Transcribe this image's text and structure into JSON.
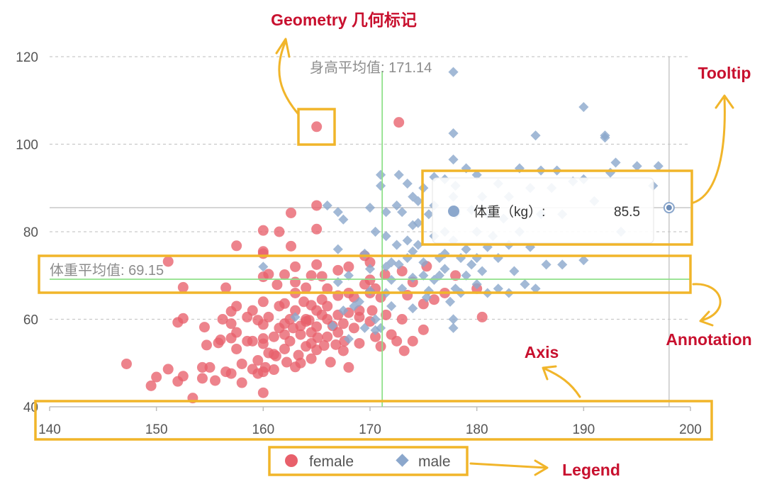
{
  "chart_data": {
    "type": "scatter",
    "title": "",
    "xlabel": "",
    "ylabel": "",
    "xlim": [
      140,
      200
    ],
    "ylim": [
      40,
      120
    ],
    "x_ticks": [
      140,
      150,
      160,
      170,
      180,
      190,
      200
    ],
    "y_ticks": [
      40,
      60,
      80,
      100,
      120
    ],
    "grid": "horizontal dashed",
    "legend_position": "bottom-center",
    "series": [
      {
        "name": "female",
        "shape": "circle",
        "color": "#e8606b",
        "points": [
          [
            147.2,
            49.8
          ],
          [
            149.5,
            44.8
          ],
          [
            150.0,
            46.8
          ],
          [
            151.1,
            73.2
          ],
          [
            151.1,
            48.6
          ],
          [
            152.0,
            45.8
          ],
          [
            152.0,
            59.3
          ],
          [
            152.5,
            67.3
          ],
          [
            152.5,
            47.0
          ],
          [
            152.5,
            60.2
          ],
          [
            153.4,
            42.0
          ],
          [
            154.3,
            46.5
          ],
          [
            154.3,
            49.0
          ],
          [
            154.5,
            58.2
          ],
          [
            154.7,
            54.1
          ],
          [
            155.0,
            49.0
          ],
          [
            155.5,
            46.0
          ],
          [
            155.8,
            54.6
          ],
          [
            156.0,
            55.3
          ],
          [
            156.2,
            60.0
          ],
          [
            156.5,
            67.2
          ],
          [
            156.5,
            48.0
          ],
          [
            157.0,
            47.6
          ],
          [
            157.0,
            55.7
          ],
          [
            157.0,
            61.8
          ],
          [
            157.5,
            57.0
          ],
          [
            157.5,
            63.0
          ],
          [
            157.5,
            76.8
          ],
          [
            157.5,
            53.2
          ],
          [
            158.0,
            49.8
          ],
          [
            158.0,
            45.5
          ],
          [
            158.5,
            60.5
          ],
          [
            159.0,
            48.6
          ],
          [
            159.0,
            55.0
          ],
          [
            159.5,
            50.6
          ],
          [
            159.5,
            59.8
          ],
          [
            159.5,
            47.6
          ],
          [
            160.0,
            55.6
          ],
          [
            160.0,
            43.2
          ],
          [
            160.0,
            48.0
          ],
          [
            160.0,
            54.4
          ],
          [
            160.0,
            58.8
          ],
          [
            160.0,
            80.3
          ],
          [
            160.0,
            75.5
          ],
          [
            160.0,
            75.0
          ],
          [
            160.0,
            69.7
          ],
          [
            160.0,
            64.0
          ],
          [
            160.2,
            49.0
          ],
          [
            160.5,
            52.3
          ],
          [
            160.5,
            70.3
          ],
          [
            161.0,
            48.5
          ],
          [
            161.0,
            56.0
          ],
          [
            161.2,
            51.6
          ],
          [
            161.3,
            67.9
          ],
          [
            161.5,
            80.0
          ],
          [
            161.5,
            58.0
          ],
          [
            162.0,
            53.2
          ],
          [
            162.0,
            63.6
          ],
          [
            162.0,
            59.0
          ],
          [
            162.0,
            70.2
          ],
          [
            162.2,
            50.2
          ],
          [
            162.5,
            55.0
          ],
          [
            162.5,
            60.0
          ],
          [
            162.6,
            76.7
          ],
          [
            162.6,
            84.3
          ],
          [
            162.8,
            58.0
          ],
          [
            163.0,
            49.1
          ],
          [
            163.0,
            66.0
          ],
          [
            163.0,
            72.0
          ],
          [
            163.0,
            62.0
          ],
          [
            163.3,
            51.8
          ],
          [
            163.5,
            50.0
          ],
          [
            163.5,
            56.5
          ],
          [
            163.8,
            64.0
          ],
          [
            164.0,
            53.8
          ],
          [
            164.0,
            60.0
          ],
          [
            164.0,
            67.2
          ],
          [
            164.0,
            59.5
          ],
          [
            164.3,
            59.8
          ],
          [
            164.5,
            51.0
          ],
          [
            164.5,
            57.0
          ],
          [
            164.5,
            70.0
          ],
          [
            164.5,
            63.2
          ],
          [
            165.0,
            104.0
          ],
          [
            165.0,
            86.0
          ],
          [
            165.0,
            80.6
          ],
          [
            165.0,
            72.5
          ],
          [
            165.0,
            62.0
          ],
          [
            165.0,
            58.3
          ],
          [
            165.0,
            53.0
          ],
          [
            165.1,
            55.8
          ],
          [
            165.5,
            69.8
          ],
          [
            165.5,
            64.5
          ],
          [
            165.7,
            54.0
          ],
          [
            166.0,
            67.0
          ],
          [
            166.0,
            60.0
          ],
          [
            166.0,
            56.0
          ],
          [
            166.3,
            50.2
          ],
          [
            166.5,
            58.5
          ],
          [
            166.8,
            54.2
          ],
          [
            167.0,
            61.0
          ],
          [
            167.0,
            65.4
          ],
          [
            167.0,
            71.2
          ],
          [
            167.0,
            57.0
          ],
          [
            167.5,
            52.8
          ],
          [
            167.6,
            55.0
          ],
          [
            168.0,
            49.0
          ],
          [
            168.0,
            61.5
          ],
          [
            168.0,
            66.0
          ],
          [
            168.0,
            72.0
          ],
          [
            168.5,
            58.0
          ],
          [
            169.0,
            54.5
          ],
          [
            169.0,
            62.0
          ],
          [
            169.5,
            68.0
          ],
          [
            169.5,
            74.5
          ],
          [
            170.0,
            69.0
          ],
          [
            170.0,
            66.0
          ],
          [
            170.0,
            73.0
          ],
          [
            170.0,
            59.5
          ],
          [
            170.2,
            62.0
          ],
          [
            170.5,
            56.0
          ],
          [
            170.5,
            67.0
          ],
          [
            171.0,
            53.8
          ],
          [
            171.0,
            65.0
          ],
          [
            171.4,
            70.2
          ],
          [
            172.0,
            56.5
          ],
          [
            172.5,
            55.0
          ],
          [
            172.7,
            105.0
          ],
          [
            173.0,
            60.0
          ],
          [
            173.0,
            71.0
          ],
          [
            173.2,
            52.8
          ],
          [
            173.5,
            65.5
          ],
          [
            174.0,
            68.5
          ],
          [
            174.0,
            55.0
          ],
          [
            175.0,
            57.6
          ],
          [
            175.0,
            63.5
          ],
          [
            175.3,
            72.1
          ],
          [
            176.0,
            64.5
          ],
          [
            177.0,
            66.0
          ],
          [
            178.0,
            70.0
          ],
          [
            180.0,
            67.0
          ],
          [
            180.5,
            60.5
          ],
          [
            157.0,
            59.0
          ],
          [
            158.5,
            55.0
          ],
          [
            161.0,
            52.0
          ],
          [
            162.0,
            56.5
          ],
          [
            163.5,
            58.5
          ],
          [
            164.5,
            54.5
          ],
          [
            166.0,
            63.0
          ],
          [
            167.5,
            59.0
          ],
          [
            169.0,
            60.5
          ],
          [
            161.5,
            63.0
          ],
          [
            159.0,
            62.0
          ],
          [
            165.5,
            61.0
          ],
          [
            168.5,
            65.0
          ],
          [
            171.5,
            61.0
          ],
          [
            163.0,
            68.5
          ],
          [
            160.5,
            60.5
          ]
        ]
      },
      {
        "name": "male",
        "shape": "diamond",
        "color": "#8ba7cc",
        "points": [
          [
            160.0,
            72.0
          ],
          [
            163.0,
            60.5
          ],
          [
            166.0,
            86.0
          ],
          [
            167.0,
            84.5
          ],
          [
            167.0,
            76.0
          ],
          [
            167.5,
            82.8
          ],
          [
            167.0,
            68.5
          ],
          [
            168.0,
            70.0
          ],
          [
            168.0,
            55.5
          ],
          [
            169.0,
            64.0
          ],
          [
            169.5,
            75.0
          ],
          [
            170.0,
            85.5
          ],
          [
            170.0,
            71.5
          ],
          [
            170.0,
            66.5
          ],
          [
            170.5,
            80.0
          ],
          [
            170.5,
            60.0
          ],
          [
            171.0,
            90.5
          ],
          [
            171.0,
            93.0
          ],
          [
            171.5,
            84.5
          ],
          [
            171.5,
            72.0
          ],
          [
            171.5,
            79.0
          ],
          [
            172.0,
            69.0
          ],
          [
            172.0,
            63.0
          ],
          [
            172.5,
            77.0
          ],
          [
            172.7,
            93.0
          ],
          [
            172.7,
            72.5
          ],
          [
            173.0,
            84.5
          ],
          [
            173.0,
            67.0
          ],
          [
            173.5,
            74.0
          ],
          [
            173.5,
            91.0
          ],
          [
            174.0,
            88.0
          ],
          [
            174.0,
            81.5
          ],
          [
            174.0,
            69.5
          ],
          [
            174.0,
            62.5
          ],
          [
            174.5,
            77.0
          ],
          [
            174.5,
            87.0
          ],
          [
            175.0,
            90.0
          ],
          [
            175.0,
            73.0
          ],
          [
            175.0,
            70.0
          ],
          [
            175.3,
            65.0
          ],
          [
            175.5,
            84.0
          ],
          [
            176.0,
            86.0
          ],
          [
            176.0,
            79.0
          ],
          [
            176.0,
            69.0
          ],
          [
            176.5,
            74.0
          ],
          [
            177.0,
            92.0
          ],
          [
            177.0,
            80.0
          ],
          [
            177.0,
            71.5
          ],
          [
            177.5,
            64.0
          ],
          [
            177.8,
            116.5
          ],
          [
            177.8,
            102.5
          ],
          [
            177.8,
            96.5
          ],
          [
            177.8,
            88.0
          ],
          [
            177.8,
            78.0
          ],
          [
            177.8,
            60.0
          ],
          [
            177.8,
            58.0
          ],
          [
            178.0,
            90.5
          ],
          [
            178.0,
            84.0
          ],
          [
            178.5,
            74.0
          ],
          [
            178.5,
            66.0
          ],
          [
            179.0,
            94.5
          ],
          [
            179.0,
            76.0
          ],
          [
            179.0,
            70.0
          ],
          [
            179.5,
            85.0
          ],
          [
            180.0,
            93.0
          ],
          [
            180.0,
            80.0
          ],
          [
            180.0,
            74.0
          ],
          [
            180.0,
            68.0
          ],
          [
            180.5,
            88.0
          ],
          [
            180.5,
            71.0
          ],
          [
            181.0,
            84.0
          ],
          [
            181.0,
            76.5
          ],
          [
            181.0,
            66.0
          ],
          [
            181.5,
            79.0
          ],
          [
            182.0,
            91.0
          ],
          [
            182.0,
            74.0
          ],
          [
            182.0,
            67.0
          ],
          [
            182.5,
            83.0
          ],
          [
            183.0,
            88.0
          ],
          [
            183.0,
            77.0
          ],
          [
            183.0,
            66.0
          ],
          [
            183.5,
            71.0
          ],
          [
            184.0,
            94.5
          ],
          [
            184.0,
            80.0
          ],
          [
            184.5,
            68.0
          ],
          [
            185.0,
            90.0
          ],
          [
            185.0,
            76.5
          ],
          [
            185.5,
            102.0
          ],
          [
            185.5,
            67.0
          ],
          [
            186.0,
            94.0
          ],
          [
            186.0,
            84.0
          ],
          [
            186.5,
            72.5
          ],
          [
            187.0,
            90.0
          ],
          [
            187.5,
            94.0
          ],
          [
            188.0,
            72.5
          ],
          [
            188.0,
            84.0
          ],
          [
            189.0,
            91.5
          ],
          [
            190.0,
            108.5
          ],
          [
            190.0,
            92.0
          ],
          [
            190.0,
            73.5
          ],
          [
            191.0,
            87.0
          ],
          [
            192.0,
            102.0
          ],
          [
            192.0,
            101.5
          ],
          [
            192.5,
            93.5
          ],
          [
            193.0,
            95.8
          ],
          [
            193.5,
            80.0
          ],
          [
            195.0,
            95.0
          ],
          [
            196.5,
            90.5
          ],
          [
            197.0,
            95.0
          ],
          [
            198.0,
            85.5
          ],
          [
            168.5,
            63.0
          ],
          [
            169.5,
            58.0
          ],
          [
            171.0,
            58.0
          ],
          [
            172.0,
            73.0
          ],
          [
            173.5,
            78.0
          ],
          [
            174.5,
            82.0
          ],
          [
            175.5,
            66.5
          ],
          [
            176.5,
            70.0
          ],
          [
            177.0,
            75.0
          ],
          [
            178.0,
            67.0
          ],
          [
            179.5,
            72.5
          ],
          [
            171.5,
            66.0
          ],
          [
            170.5,
            57.5
          ],
          [
            167.5,
            62.0
          ],
          [
            166.5,
            58.5
          ],
          [
            172.5,
            86.0
          ],
          [
            174.0,
            75.5
          ],
          [
            176.0,
            92.5
          ]
        ]
      }
    ],
    "annotations": {
      "mean_height_label": "身高平均值: 171.14",
      "mean_height_value": 171.14,
      "mean_weight_label": "体重平均值: 69.15",
      "mean_weight_value": 69.15
    },
    "tooltip": {
      "label": "体重（kg）:",
      "value": "85.5",
      "point": [
        198.0,
        85.5
      ]
    }
  },
  "callouts": {
    "geometry": "Geometry 几何标记",
    "tooltip": "Tooltip",
    "annotation": "Annotation",
    "axis": "Axis",
    "legend": "Legend"
  },
  "legend": [
    {
      "name": "female",
      "color": "#e8606b",
      "shape": "circle"
    },
    {
      "name": "male",
      "color": "#8ba7cc",
      "shape": "diamond"
    }
  ],
  "colors": {
    "highlight_box": "#f1b52a",
    "callout_text": "#c8102e",
    "mean_line": "#8fe08a"
  }
}
